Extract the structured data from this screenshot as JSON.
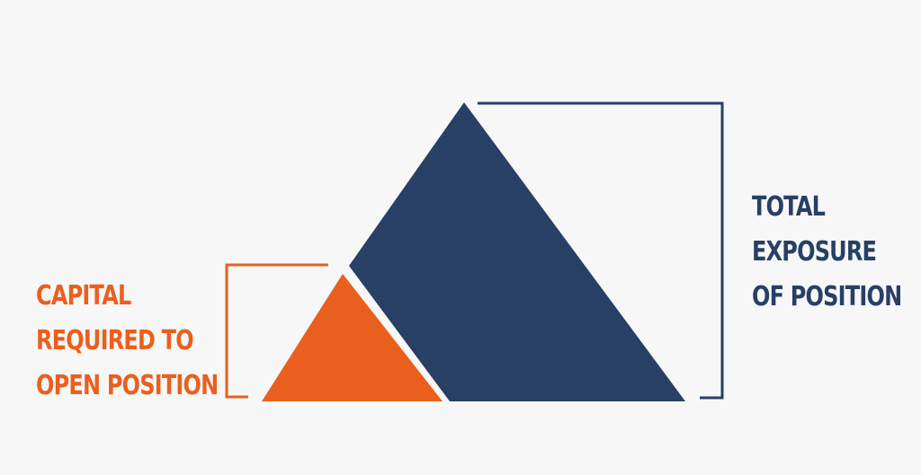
{
  "colors": {
    "background": "#f7f7f7",
    "orange": "#eb5f1e",
    "navy": "#283f66"
  },
  "capital": {
    "lines": [
      "CAPITAL",
      "REQUIRED TO",
      "OPEN POSITION"
    ]
  },
  "exposure": {
    "lines": [
      "TOTAL",
      "EXPOSURE",
      "OF POSITION"
    ]
  }
}
